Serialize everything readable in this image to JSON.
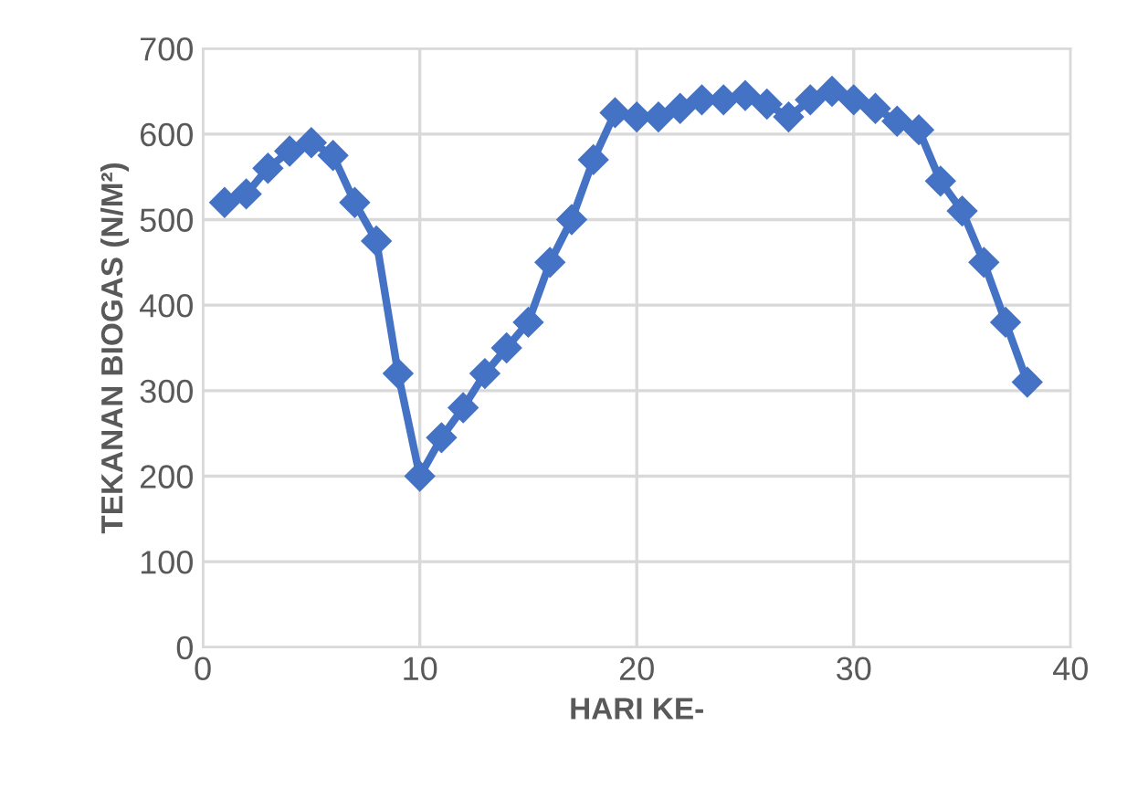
{
  "chart_data": {
    "type": "line",
    "xlabel": "HARI KE-",
    "ylabel": "TEKANAN BIOGAS (N/M²)",
    "x": [
      1,
      2,
      3,
      4,
      5,
      6,
      7,
      8,
      9,
      10,
      11,
      12,
      13,
      14,
      15,
      16,
      17,
      18,
      19,
      20,
      21,
      22,
      23,
      24,
      25,
      26,
      27,
      28,
      29,
      30,
      31,
      32,
      33,
      34,
      35,
      36,
      37,
      38
    ],
    "series": [
      {
        "color": "#4472c4",
        "values": [
          520,
          530,
          560,
          580,
          590,
          575,
          520,
          475,
          320,
          200,
          245,
          280,
          320,
          350,
          380,
          450,
          500,
          570,
          625,
          620,
          620,
          630,
          640,
          640,
          645,
          635,
          620,
          640,
          650,
          640,
          630,
          615,
          605,
          545,
          510,
          450,
          380,
          310
        ]
      }
    ],
    "xlim": [
      0,
      40
    ],
    "xticks": [
      0,
      10,
      20,
      30,
      40
    ],
    "ylim": [
      0,
      700
    ],
    "yticks": [
      0,
      100,
      200,
      300,
      400,
      500,
      600,
      700
    ],
    "grid": true,
    "marker": "diamond",
    "line_style": "solid"
  }
}
